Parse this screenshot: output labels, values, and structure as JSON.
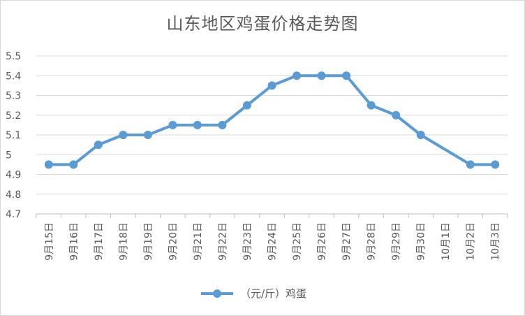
{
  "chart_data": {
    "type": "line",
    "title": "山东地区鸡蛋价格走势图",
    "categories": [
      "9月15日",
      "9月16日",
      "9月17日",
      "9月18日",
      "9月19日",
      "9月20日",
      "9月21日",
      "9月22日",
      "9月23日",
      "9月24日",
      "9月25日",
      "9月26日",
      "9月27日",
      "9月28日",
      "9月29日",
      "9月30日",
      "10月1日",
      "10月2日",
      "10月3日"
    ],
    "series": [
      {
        "name": "（元/斤）鸡蛋",
        "values": [
          4.95,
          4.95,
          5.05,
          5.1,
          5.1,
          5.15,
          5.15,
          5.15,
          5.25,
          5.35,
          5.4,
          5.4,
          5.4,
          5.25,
          5.2,
          5.1,
          null,
          4.95,
          4.95
        ],
        "color": "#5b9bd5"
      }
    ],
    "ylim": [
      4.7,
      5.5
    ],
    "yticks": [
      "5.5",
      "5.4",
      "5.3",
      "5.2",
      "5.1",
      "5",
      "4.9",
      "4.8",
      "4.7"
    ],
    "ytick_values": [
      5.5,
      5.4,
      5.3,
      5.2,
      5.1,
      5.0,
      4.9,
      4.8,
      4.7
    ],
    "legend_position": "bottom",
    "grid": true
  }
}
